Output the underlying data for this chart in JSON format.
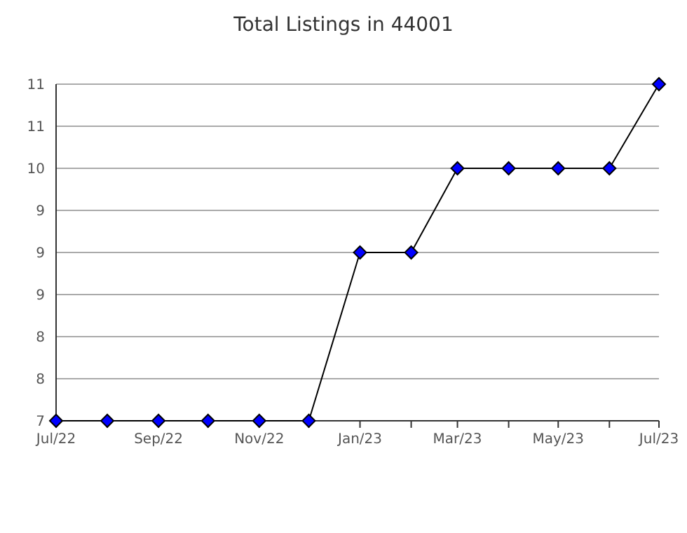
{
  "chart_data": {
    "type": "line",
    "title": "Total Listings in 44001",
    "x": [
      "2022-07",
      "2022-08",
      "2022-09",
      "2022-10",
      "2022-11",
      "2022-12",
      "2023-01",
      "2023-02",
      "2023-03",
      "2023-04",
      "2023-05",
      "2023-06",
      "2023-07"
    ],
    "series": [
      {
        "color": "#0000ff",
        "values": [
          7,
          7,
          7,
          7,
          7,
          7,
          9,
          9,
          10,
          10,
          10,
          10,
          11
        ]
      }
    ],
    "xlim": [
      "2022-07",
      "2023-07"
    ],
    "xticks": [
      {
        "value": "2022-07",
        "label": "Jul/22"
      },
      {
        "value": "2022-08",
        "label": null
      },
      {
        "value": "2022-09",
        "label": "Sep/22"
      },
      {
        "value": "2022-10",
        "label": null
      },
      {
        "value": "2022-11",
        "label": "Nov/22"
      },
      {
        "value": "2022-12",
        "label": null
      },
      {
        "value": "2023-01",
        "label": "Jan/23"
      },
      {
        "value": "2023-02",
        "label": null
      },
      {
        "value": "2023-03",
        "label": "Mar/23"
      },
      {
        "value": "2023-04",
        "label": null
      },
      {
        "value": "2023-05",
        "label": "May/23"
      },
      {
        "value": "2023-06",
        "label": null
      },
      {
        "value": "2023-07",
        "label": "Jul/23"
      }
    ],
    "ylim": [
      7,
      11
    ],
    "yticks": [
      7,
      {
        "value": 7.5,
        "label": "8"
      },
      8,
      {
        "value": 8.5,
        "label": "9"
      },
      9,
      {
        "value": 9.5,
        "label": "9"
      },
      10,
      {
        "value": 10.5,
        "label": "11"
      },
      11
    ],
    "grid": "y",
    "marker": "diamond",
    "line_style": "solid"
  }
}
